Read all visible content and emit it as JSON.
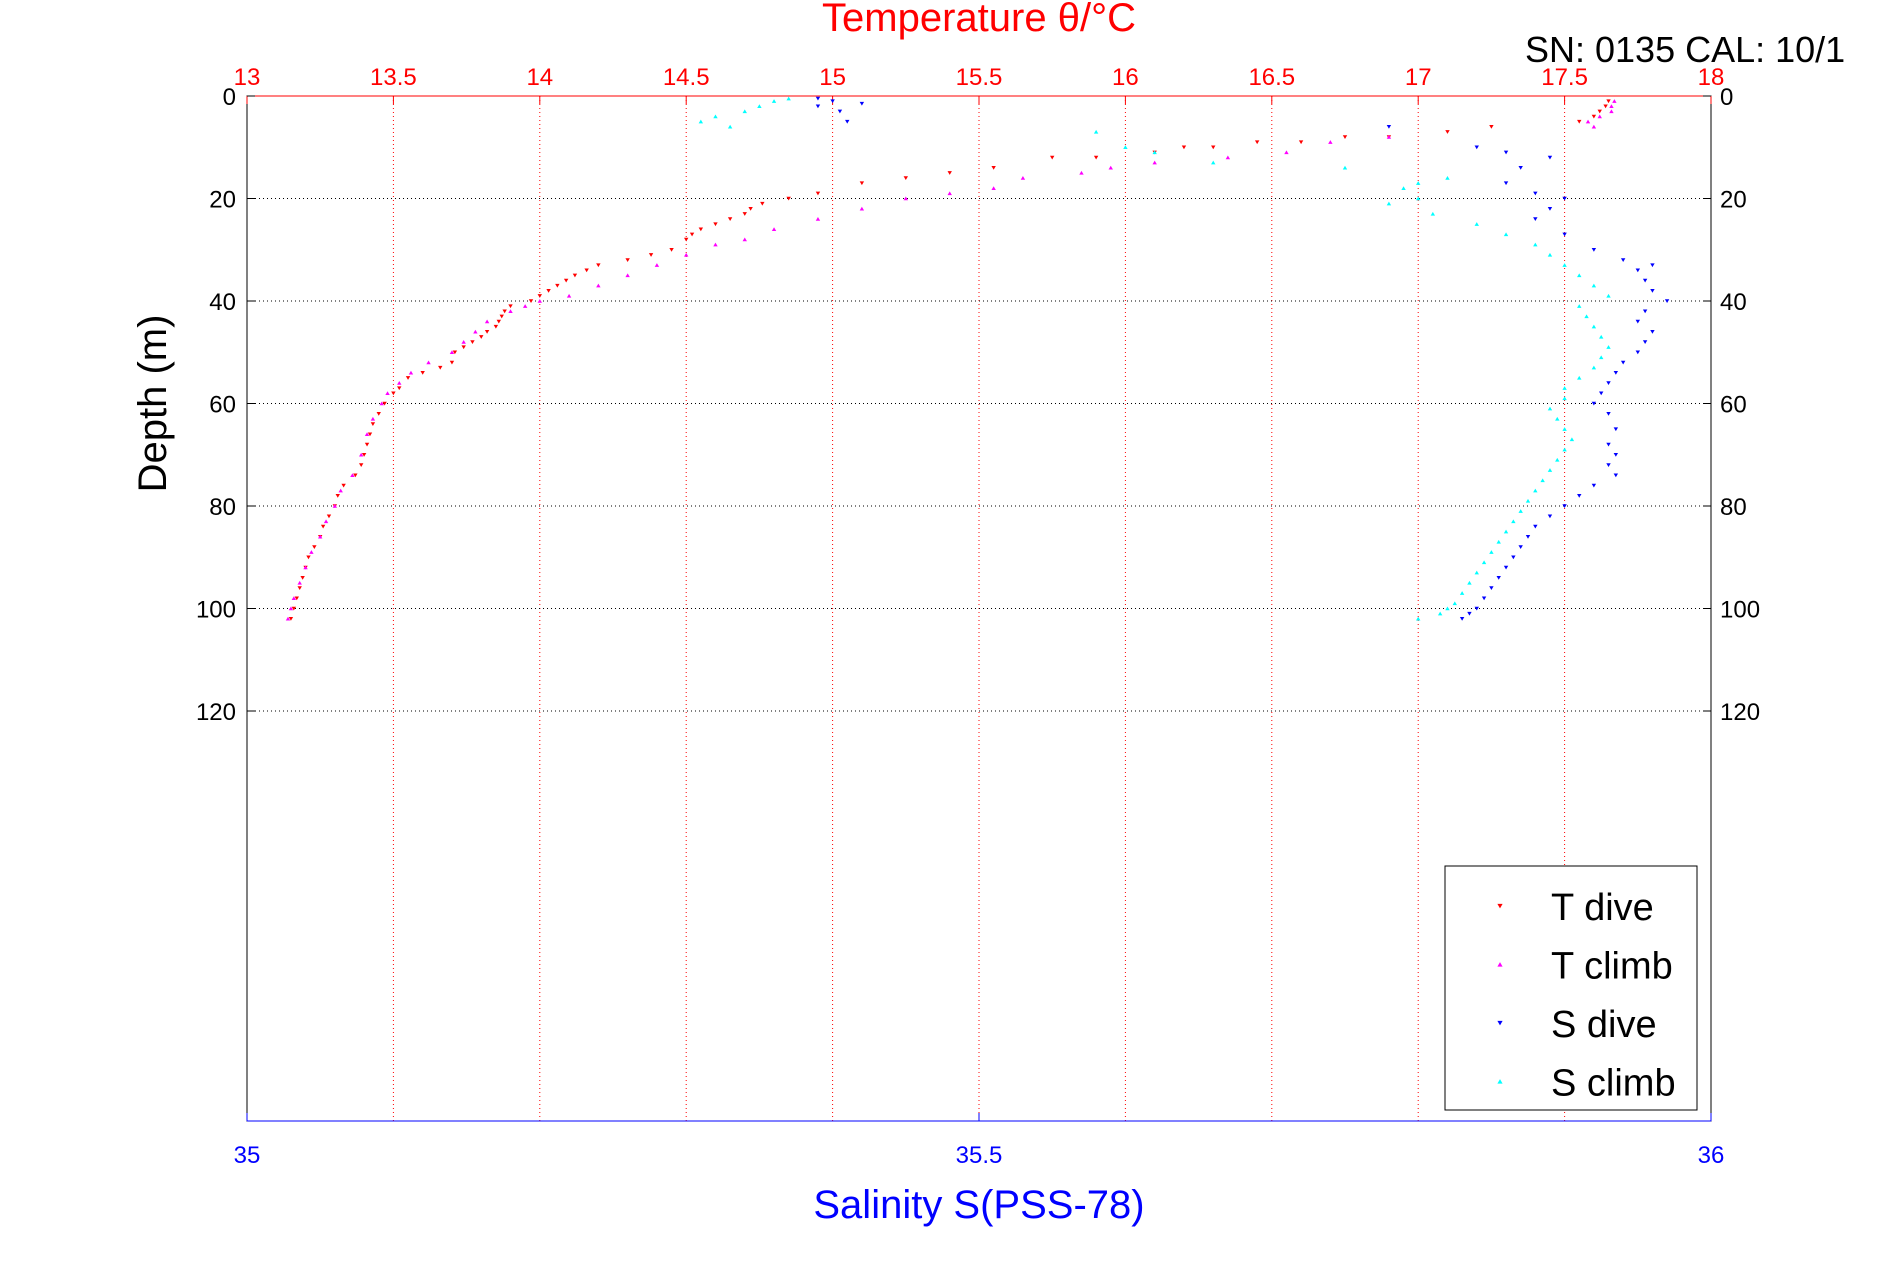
{
  "chart_data": {
    "type": "scatter",
    "top_axis": {
      "label": "Temperature θ/°C",
      "range": [
        13,
        18
      ],
      "ticks": [
        "13",
        "13.5",
        "14",
        "14.5",
        "15",
        "15.5",
        "16",
        "16.5",
        "17",
        "17.5",
        "18"
      ],
      "color": "#ff0000",
      "grid": true
    },
    "bottom_axis": {
      "label": "Salinity S(PSS-78)",
      "range": [
        35,
        36
      ],
      "ticks": [
        "35",
        "35.5",
        "36"
      ],
      "color": "#0000ff"
    },
    "y_axis": {
      "label": "Depth (m)",
      "range": [
        0,
        200
      ],
      "reversed": true,
      "ticks": [
        "0",
        "20",
        "40",
        "60",
        "80",
        "100",
        "120"
      ],
      "grid": true
    },
    "annotation": "SN: 0135  CAL: 10/1",
    "legend_position": "bottom-right",
    "series": [
      {
        "name": "T dive",
        "axis": "temperature",
        "color": "#ff0000",
        "marker": "triangle-down",
        "points": [
          [
            17.65,
            1
          ],
          [
            17.64,
            2
          ],
          [
            17.62,
            3
          ],
          [
            17.6,
            4
          ],
          [
            17.55,
            5
          ],
          [
            17.25,
            6
          ],
          [
            17.1,
            7
          ],
          [
            16.9,
            8
          ],
          [
            16.75,
            8
          ],
          [
            16.6,
            9
          ],
          [
            16.45,
            9
          ],
          [
            16.3,
            10
          ],
          [
            16.2,
            10
          ],
          [
            16.1,
            11
          ],
          [
            15.9,
            12
          ],
          [
            15.75,
            12
          ],
          [
            15.55,
            14
          ],
          [
            15.4,
            15
          ],
          [
            15.25,
            16
          ],
          [
            15.1,
            17
          ],
          [
            14.95,
            19
          ],
          [
            14.85,
            20
          ],
          [
            14.76,
            21
          ],
          [
            14.72,
            22
          ],
          [
            14.7,
            23
          ],
          [
            14.65,
            24
          ],
          [
            14.6,
            25
          ],
          [
            14.55,
            26
          ],
          [
            14.52,
            27
          ],
          [
            14.5,
            28
          ],
          [
            14.45,
            30
          ],
          [
            14.38,
            31
          ],
          [
            14.3,
            32
          ],
          [
            14.2,
            33
          ],
          [
            14.16,
            34
          ],
          [
            14.12,
            35
          ],
          [
            14.09,
            36
          ],
          [
            14.06,
            37
          ],
          [
            14.03,
            38
          ],
          [
            14.0,
            39
          ],
          [
            13.97,
            40
          ],
          [
            13.9,
            41
          ],
          [
            13.88,
            42
          ],
          [
            13.87,
            43
          ],
          [
            13.86,
            44
          ],
          [
            13.85,
            45
          ],
          [
            13.82,
            46
          ],
          [
            13.8,
            47
          ],
          [
            13.77,
            48
          ],
          [
            13.74,
            49
          ],
          [
            13.71,
            50
          ],
          [
            13.7,
            52
          ],
          [
            13.66,
            53
          ],
          [
            13.6,
            54
          ],
          [
            13.55,
            55
          ],
          [
            13.52,
            57
          ],
          [
            13.5,
            58
          ],
          [
            13.47,
            60
          ],
          [
            13.45,
            62
          ],
          [
            13.43,
            64
          ],
          [
            13.42,
            66
          ],
          [
            13.41,
            68
          ],
          [
            13.4,
            70
          ],
          [
            13.39,
            72
          ],
          [
            13.37,
            74
          ],
          [
            13.33,
            76
          ],
          [
            13.31,
            78
          ],
          [
            13.3,
            80
          ],
          [
            13.28,
            82
          ],
          [
            13.26,
            84
          ],
          [
            13.25,
            86
          ],
          [
            13.23,
            88
          ],
          [
            13.21,
            90
          ],
          [
            13.2,
            92
          ],
          [
            13.19,
            94
          ],
          [
            13.18,
            96
          ],
          [
            13.17,
            98
          ],
          [
            13.16,
            100
          ],
          [
            13.15,
            102
          ]
        ]
      },
      {
        "name": "T climb",
        "axis": "temperature",
        "color": "#ff00ff",
        "marker": "triangle-up",
        "points": [
          [
            17.67,
            1
          ],
          [
            17.66,
            2
          ],
          [
            17.66,
            3
          ],
          [
            17.62,
            4
          ],
          [
            17.58,
            5
          ],
          [
            17.6,
            6
          ],
          [
            16.9,
            8
          ],
          [
            16.7,
            9
          ],
          [
            16.55,
            11
          ],
          [
            16.35,
            12
          ],
          [
            16.1,
            13
          ],
          [
            15.95,
            14
          ],
          [
            15.85,
            15
          ],
          [
            15.65,
            16
          ],
          [
            15.55,
            18
          ],
          [
            15.4,
            19
          ],
          [
            15.25,
            20
          ],
          [
            15.1,
            22
          ],
          [
            14.95,
            24
          ],
          [
            14.8,
            26
          ],
          [
            14.7,
            28
          ],
          [
            14.6,
            29
          ],
          [
            14.5,
            31
          ],
          [
            14.4,
            33
          ],
          [
            14.3,
            35
          ],
          [
            14.2,
            37
          ],
          [
            14.1,
            39
          ],
          [
            14.0,
            40
          ],
          [
            13.95,
            41
          ],
          [
            13.9,
            42
          ],
          [
            13.82,
            44
          ],
          [
            13.78,
            46
          ],
          [
            13.74,
            48
          ],
          [
            13.7,
            50
          ],
          [
            13.62,
            52
          ],
          [
            13.56,
            54
          ],
          [
            13.52,
            56
          ],
          [
            13.48,
            58
          ],
          [
            13.46,
            60
          ],
          [
            13.43,
            63
          ],
          [
            13.41,
            66
          ],
          [
            13.39,
            70
          ],
          [
            13.36,
            74
          ],
          [
            13.32,
            77
          ],
          [
            13.3,
            80
          ],
          [
            13.27,
            83
          ],
          [
            13.25,
            86
          ],
          [
            13.22,
            89
          ],
          [
            13.2,
            92
          ],
          [
            13.18,
            95
          ],
          [
            13.16,
            98
          ],
          [
            13.15,
            100
          ],
          [
            13.14,
            102
          ]
        ]
      },
      {
        "name": "S dive",
        "axis": "salinity",
        "color": "#0000ff",
        "marker": "triangle-down",
        "points": [
          [
            35.39,
            0.5
          ],
          [
            35.4,
            1
          ],
          [
            35.42,
            1.5
          ],
          [
            35.39,
            2
          ],
          [
            35.405,
            3
          ],
          [
            35.41,
            5
          ],
          [
            35.78,
            6
          ],
          [
            35.84,
            10
          ],
          [
            35.86,
            11
          ],
          [
            35.89,
            12
          ],
          [
            35.87,
            14
          ],
          [
            35.86,
            17
          ],
          [
            35.88,
            19
          ],
          [
            35.9,
            20
          ],
          [
            35.89,
            22
          ],
          [
            35.88,
            24
          ],
          [
            35.9,
            27
          ],
          [
            35.92,
            30
          ],
          [
            35.94,
            32
          ],
          [
            35.96,
            33
          ],
          [
            35.95,
            34
          ],
          [
            35.955,
            36
          ],
          [
            35.96,
            38
          ],
          [
            35.97,
            40
          ],
          [
            35.955,
            42
          ],
          [
            35.95,
            44
          ],
          [
            35.96,
            46
          ],
          [
            35.955,
            48
          ],
          [
            35.95,
            50
          ],
          [
            35.94,
            52
          ],
          [
            35.935,
            54
          ],
          [
            35.93,
            56
          ],
          [
            35.925,
            58
          ],
          [
            35.92,
            60
          ],
          [
            35.93,
            62
          ],
          [
            35.935,
            65
          ],
          [
            35.93,
            68
          ],
          [
            35.935,
            70
          ],
          [
            35.93,
            72
          ],
          [
            35.935,
            74
          ],
          [
            35.92,
            76
          ],
          [
            35.91,
            78
          ],
          [
            35.9,
            80
          ],
          [
            35.89,
            82
          ],
          [
            35.88,
            84
          ],
          [
            35.875,
            86
          ],
          [
            35.87,
            88
          ],
          [
            35.865,
            90
          ],
          [
            35.86,
            92
          ],
          [
            35.855,
            94
          ],
          [
            35.85,
            96
          ],
          [
            35.845,
            98
          ],
          [
            35.84,
            100
          ],
          [
            35.835,
            101
          ],
          [
            35.83,
            102
          ]
        ]
      },
      {
        "name": "S climb",
        "axis": "salinity",
        "color": "#00ffff",
        "marker": "triangle-up",
        "points": [
          [
            35.37,
            0.5
          ],
          [
            35.36,
            1
          ],
          [
            35.35,
            2
          ],
          [
            35.34,
            3
          ],
          [
            35.32,
            4
          ],
          [
            35.31,
            5
          ],
          [
            35.33,
            6
          ],
          [
            35.58,
            7
          ],
          [
            35.6,
            10
          ],
          [
            35.62,
            11
          ],
          [
            35.66,
            13
          ],
          [
            35.75,
            14
          ],
          [
            35.82,
            16
          ],
          [
            35.8,
            17
          ],
          [
            35.79,
            18
          ],
          [
            35.8,
            20
          ],
          [
            35.78,
            21
          ],
          [
            35.81,
            23
          ],
          [
            35.84,
            25
          ],
          [
            35.86,
            27
          ],
          [
            35.88,
            29
          ],
          [
            35.89,
            31
          ],
          [
            35.9,
            33
          ],
          [
            35.91,
            35
          ],
          [
            35.92,
            37
          ],
          [
            35.93,
            39
          ],
          [
            35.91,
            41
          ],
          [
            35.915,
            43
          ],
          [
            35.92,
            45
          ],
          [
            35.925,
            47
          ],
          [
            35.93,
            49
          ],
          [
            35.925,
            51
          ],
          [
            35.92,
            53
          ],
          [
            35.91,
            55
          ],
          [
            35.9,
            57
          ],
          [
            35.9,
            59
          ],
          [
            35.89,
            61
          ],
          [
            35.895,
            63
          ],
          [
            35.9,
            65
          ],
          [
            35.905,
            67
          ],
          [
            35.9,
            69
          ],
          [
            35.895,
            71
          ],
          [
            35.89,
            73
          ],
          [
            35.885,
            75
          ],
          [
            35.88,
            77
          ],
          [
            35.875,
            79
          ],
          [
            35.87,
            81
          ],
          [
            35.865,
            83
          ],
          [
            35.86,
            85
          ],
          [
            35.855,
            87
          ],
          [
            35.85,
            89
          ],
          [
            35.845,
            91
          ],
          [
            35.84,
            93
          ],
          [
            35.835,
            95
          ],
          [
            35.83,
            97
          ],
          [
            35.825,
            99
          ],
          [
            35.82,
            100
          ],
          [
            35.815,
            101
          ],
          [
            35.8,
            102
          ]
        ]
      }
    ]
  }
}
